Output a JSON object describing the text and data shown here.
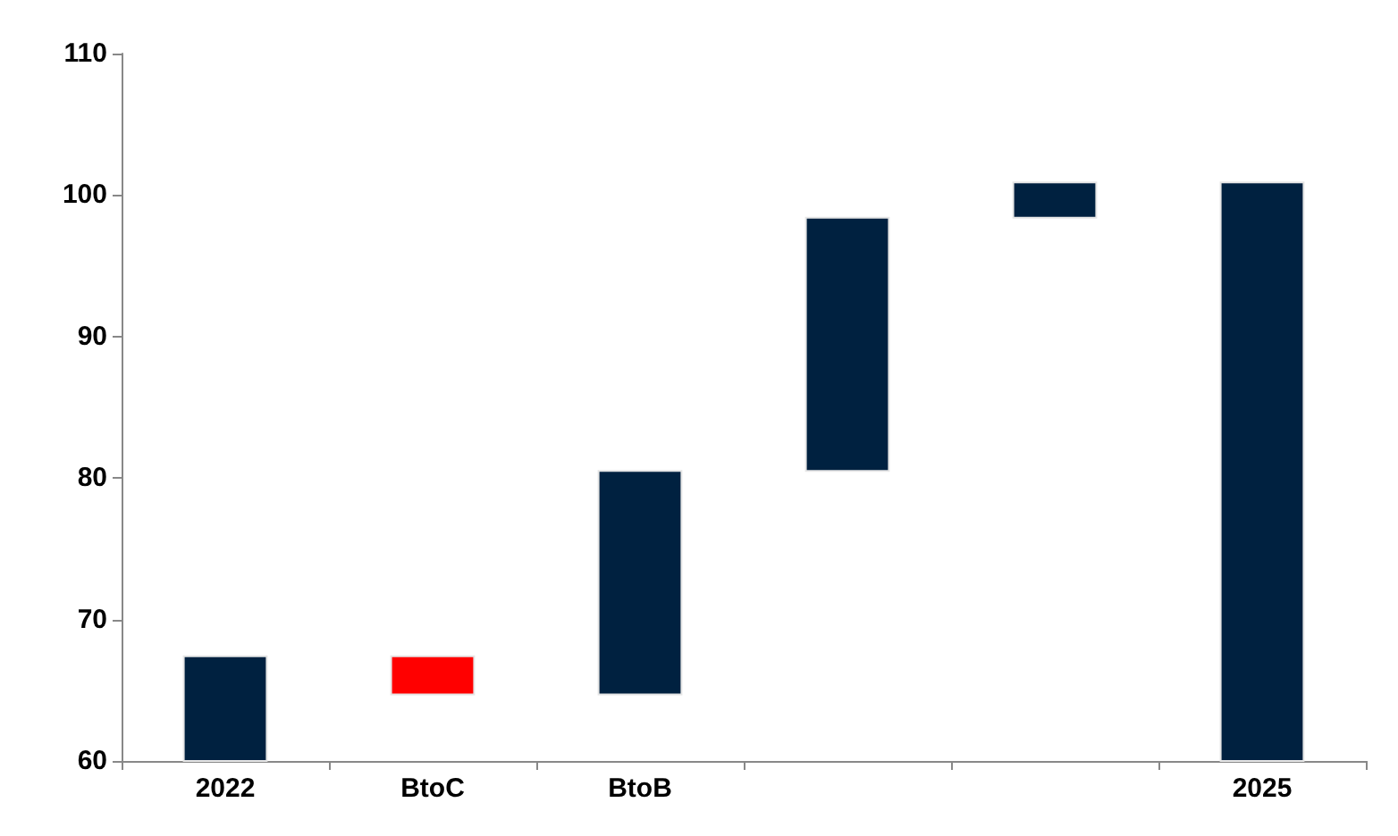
{
  "chart_data": {
    "type": "bar",
    "categories": [
      "2022",
      "BtoC",
      "BtoB",
      null,
      null,
      "2025"
    ],
    "values": [
      67.4,
      -2.7,
      15.8,
      17.9,
      2.5,
      100.9
    ],
    "base": [
      null,
      67.4,
      64.7,
      80.5,
      98.4,
      null
    ],
    "colors": [
      "#002140",
      "#ff0000",
      "#002140",
      "#002140",
      "#002140",
      "#002140"
    ],
    "ylim": [
      60,
      110
    ],
    "yticks": [
      60,
      70,
      80,
      90,
      100,
      110
    ],
    "grid": false
  }
}
